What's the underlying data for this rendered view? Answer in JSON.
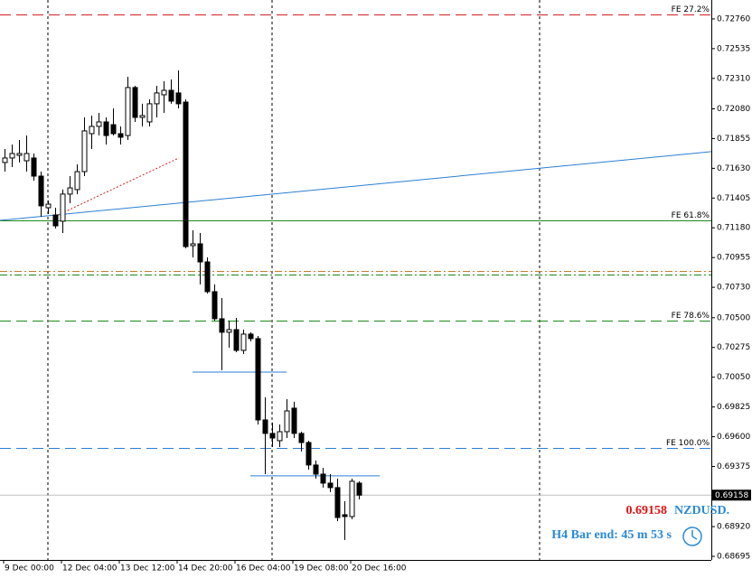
{
  "chart_data": {
    "type": "candlestick",
    "symbol": "NZDUSD.",
    "timer": "H4 Bar end: 45 m 53 s",
    "current_price": 0.69158,
    "ylim": [
      0.68668,
      0.72903
    ],
    "yticks": [
      {
        "value": 0.7276,
        "label": "0.72760"
      },
      0.72535,
      {
        "value": 0.7231,
        "label": "0.72310"
      },
      {
        "value": 0.7208,
        "label": "0.72080"
      },
      0.71855,
      {
        "value": 0.7163,
        "label": "0.71630"
      },
      0.71405,
      {
        "value": 0.7118,
        "label": "0.71180"
      },
      0.70955,
      {
        "value": 0.7073,
        "label": "0.70730"
      },
      {
        "value": 0.705,
        "label": "0.70500"
      },
      0.70275,
      {
        "value": 0.7005,
        "label": "0.70050"
      },
      0.69825,
      {
        "value": 0.696,
        "label": "0.69600"
      },
      0.69375,
      {
        "value": 0.6892,
        "label": "0.68920"
      },
      0.68695
    ],
    "categories": [
      "9 Dec 00:00",
      null,
      null,
      null,
      null,
      null,
      null,
      null,
      "12 Dec 04:00",
      null,
      null,
      null,
      null,
      null,
      null,
      null,
      "13 Dec 12:00",
      null,
      null,
      null,
      null,
      null,
      null,
      null,
      "14 Dec 20:00",
      null,
      null,
      null,
      null,
      null,
      null,
      null,
      "16 Dec 04:00",
      null,
      null,
      null,
      null,
      null,
      null,
      null,
      "19 Dec 08:00",
      null,
      null,
      null,
      null,
      null,
      null,
      null,
      "20 Dec 16:00",
      null
    ],
    "ohlc": [
      [
        0.71674,
        0.71776,
        0.71605,
        0.71708
      ],
      [
        0.71708,
        0.7181,
        0.71639,
        0.71742
      ],
      [
        0.71728,
        0.71844,
        0.71674,
        0.71742
      ],
      [
        0.71687,
        0.71878,
        0.71605,
        0.71742
      ],
      [
        0.71708,
        0.71742,
        0.71537,
        0.71571
      ],
      [
        0.71571,
        0.71605,
        0.71264,
        0.71346
      ],
      [
        0.71332,
        0.71387,
        0.71284,
        0.71359
      ],
      [
        0.71277,
        0.71332,
        0.71175,
        0.71195
      ],
      [
        0.7123,
        0.71469,
        0.71141,
        0.71435
      ],
      [
        0.71435,
        0.71571,
        0.71366,
        0.71482
      ],
      [
        0.71469,
        0.7166,
        0.71435,
        0.71605
      ],
      [
        0.71605,
        0.72015,
        0.71571,
        0.71913
      ],
      [
        0.71892,
        0.72029,
        0.71776,
        0.71947
      ],
      [
        0.71947,
        0.72049,
        0.71878,
        0.71981
      ],
      [
        0.71981,
        0.72015,
        0.7181,
        0.71878
      ],
      [
        0.7196,
        0.72083,
        0.71878,
        0.71892
      ],
      [
        0.71892,
        0.71947,
        0.7181,
        0.71865
      ],
      [
        0.71878,
        0.72322,
        0.71844,
        0.72241
      ],
      [
        0.72241,
        0.72254,
        0.71981,
        0.72015
      ],
      [
        0.72015,
        0.72118,
        0.71947,
        0.72029
      ],
      [
        0.71981,
        0.72152,
        0.71947,
        0.72118
      ],
      [
        0.72118,
        0.72254,
        0.72015,
        0.722
      ],
      [
        0.72186,
        0.72288,
        0.72049,
        0.7222
      ],
      [
        0.7222,
        0.72302,
        0.72118,
        0.72138
      ],
      [
        0.722,
        0.7237,
        0.72083,
        0.72118
      ],
      [
        0.72131,
        0.72152,
        0.71025,
        0.71038
      ],
      [
        0.71045,
        0.71161,
        0.70956,
        0.71059
      ],
      [
        0.71059,
        0.71141,
        0.70752,
        0.70922
      ],
      [
        0.70922,
        0.70956,
        0.70683,
        0.70697
      ],
      [
        0.70697,
        0.70752,
        0.70478,
        0.70492
      ],
      [
        0.70492,
        0.70649,
        0.70103,
        0.7039
      ],
      [
        0.7039,
        0.70478,
        0.70273,
        0.7041
      ],
      [
        0.7041,
        0.70499,
        0.70239,
        0.70253
      ],
      [
        0.70253,
        0.7041,
        0.70226,
        0.70376
      ],
      [
        0.70376,
        0.7039,
        0.70321,
        0.70342
      ],
      [
        0.70342,
        0.70362,
        0.69693,
        0.69727
      ],
      [
        0.69727,
        0.69898,
        0.69317,
        0.69625
      ],
      [
        0.69625,
        0.69707,
        0.69522,
        0.6959
      ],
      [
        0.6957,
        0.69693,
        0.69522,
        0.69638
      ],
      [
        0.69638,
        0.69884,
        0.6959,
        0.69795
      ],
      [
        0.69816,
        0.69864,
        0.6959,
        0.69625
      ],
      [
        0.69625,
        0.69638,
        0.69488,
        0.69556
      ],
      [
        0.69556,
        0.6957,
        0.69351,
        0.69386
      ],
      [
        0.69386,
        0.6942,
        0.69283,
        0.69317
      ],
      [
        0.69317,
        0.69365,
        0.69215,
        0.69249
      ],
      [
        0.69249,
        0.69317,
        0.69181,
        0.69215
      ],
      [
        0.69215,
        0.69283,
        0.68962,
        0.68989
      ],
      [
        0.6901,
        0.69112,
        0.68819,
        0.68996
      ],
      [
        0.68996,
        0.69283,
        0.68976,
        0.69263
      ],
      [
        0.69249,
        0.69263,
        0.69126,
        0.69158
      ]
    ],
    "levels": [
      {
        "name": "FE 27.2%",
        "value": 0.72794,
        "color": "#d62020",
        "style": "dashed"
      },
      {
        "name": "FE 61.8%",
        "value": 0.71236,
        "color": "#1a8a1a",
        "style": "solid"
      },
      {
        "value": 0.70854,
        "color": "#c87a2a",
        "style": "dashdot"
      },
      {
        "value": 0.70827,
        "color": "#1a8a1a",
        "style": "dashdot"
      },
      {
        "name": "FE 78.6%",
        "value": 0.70478,
        "color": "#1a8a1a",
        "style": "dashed"
      },
      {
        "name": "FE 100.0%",
        "value": 0.69515,
        "color": "#2a7fd4",
        "style": "dashed"
      }
    ],
    "trendlines": [
      {
        "color": "#2a7fd4",
        "style": "solid",
        "x": [
          -0.6,
          97.75
        ],
        "y": [
          0.71236,
          0.71756
        ]
      },
      {
        "color": "#d62020",
        "style": "dotted",
        "x": [
          6.9,
          24.1
        ],
        "y": [
          0.71264,
          0.71708
        ]
      },
      {
        "color": "#2a7fd4",
        "style": "solid",
        "x": [
          26,
          39
        ],
        "y": [
          0.70089,
          0.70089
        ]
      },
      {
        "color": "#2a7fd4",
        "style": "solid",
        "x": [
          34,
          51.9
        ],
        "y": [
          0.69304,
          0.69304
        ]
      }
    ]
  }
}
